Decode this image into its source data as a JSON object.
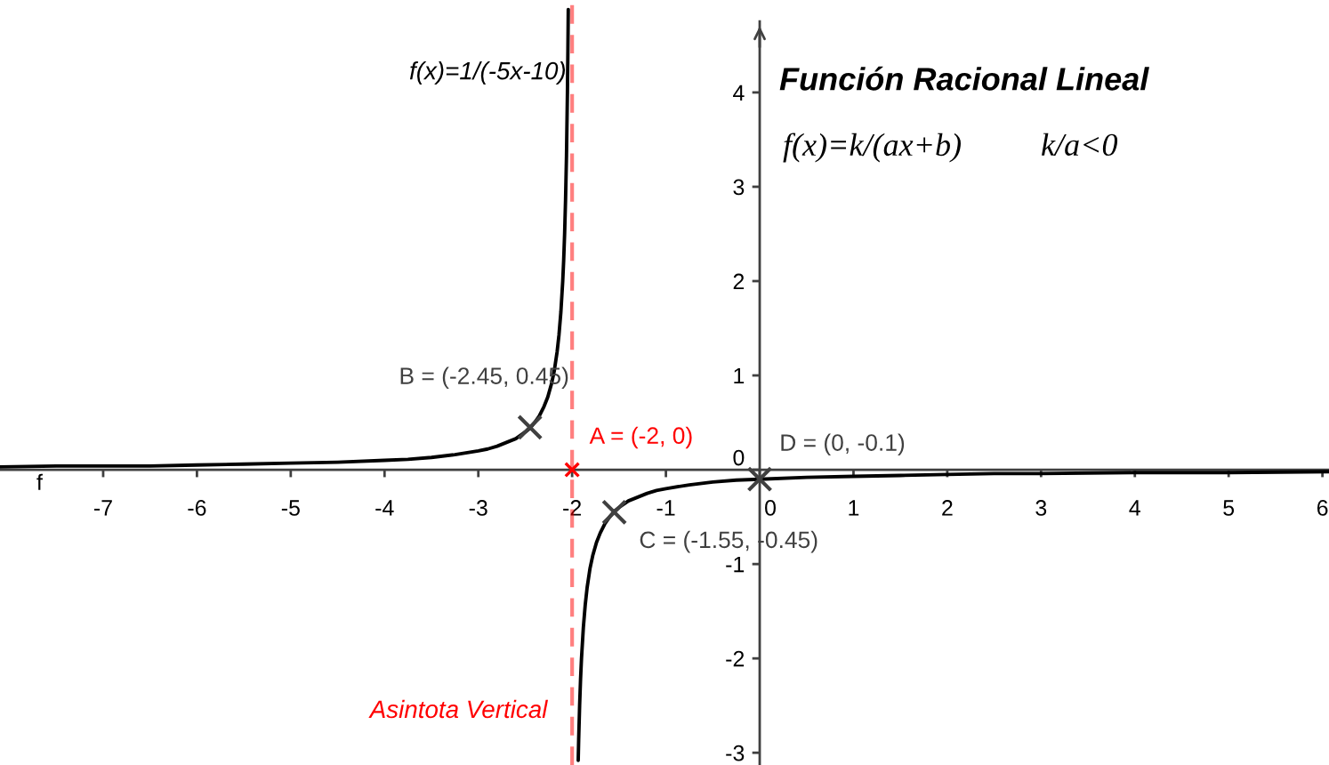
{
  "chart_data": {
    "type": "line",
    "title": "Función Racional Lineal",
    "annotations": [
      "f(x)=1/(-5x-10)",
      "f(x)=k/(ax+b)",
      "k/a<0"
    ],
    "xlim": [
      -8.1,
      6.07
    ],
    "ylim": [
      -3.13,
      4.98
    ],
    "xticks": [
      -7,
      -6,
      -5,
      -4,
      -3,
      -2,
      -1,
      0,
      1,
      2,
      3,
      4,
      5,
      6
    ],
    "yticks": [
      -3,
      -2,
      -1,
      0,
      1,
      2,
      3,
      4
    ],
    "ref_lines": [
      {
        "axis": "x",
        "value": -2,
        "label": "Asintota Vertical",
        "color": "#ff0000",
        "line_style": "dashed"
      }
    ],
    "series": [
      {
        "name": "f",
        "color": "#000000",
        "marker": "none",
        "x": [
          -8.1,
          -7.5,
          -7,
          -6.5,
          -6,
          -5.5,
          -5,
          -4.5,
          -4,
          -3.75,
          -3.5,
          -3.25,
          -3,
          -2.9,
          -2.8,
          -2.7,
          -2.6,
          -2.5,
          -2.45,
          -2.4,
          -2.35,
          -2.3,
          -2.26,
          -2.22,
          -2.19,
          -2.16,
          -2.14,
          -2.12,
          -2.1,
          -2.09,
          -2.08,
          -2.07,
          -2.06,
          -2.05,
          -2.045,
          -2.041,
          -2,
          -1.935,
          -1.93,
          -1.92,
          -1.91,
          -1.9,
          -1.88,
          -1.86,
          -1.84,
          -1.81,
          -1.78,
          -1.74,
          -1.7,
          -1.65,
          -1.6,
          -1.55,
          -1.5,
          -1.4,
          -1.3,
          -1.2,
          -1.1,
          -1,
          -0.75,
          -0.5,
          -0.25,
          0,
          0.5,
          1,
          1.5,
          2,
          2.5,
          3,
          4,
          5,
          6.07
        ],
        "values": [
          0.03,
          0.04,
          0.04,
          0.04,
          0.05,
          0.06,
          0.07,
          0.08,
          0.1,
          0.11,
          0.13,
          0.16,
          0.2,
          0.22,
          0.25,
          0.29,
          0.33,
          0.4,
          0.44,
          0.5,
          0.57,
          0.67,
          0.77,
          0.91,
          1.05,
          1.25,
          1.43,
          1.67,
          2,
          2.22,
          2.5,
          2.86,
          3.33,
          4,
          4.44,
          4.88,
          null,
          -3.08,
          -2.86,
          -2.5,
          -2.22,
          -2,
          -1.67,
          -1.43,
          -1.25,
          -1.05,
          -0.91,
          -0.77,
          -0.67,
          -0.57,
          -0.5,
          -0.44,
          -0.4,
          -0.33,
          -0.29,
          -0.25,
          -0.22,
          -0.2,
          -0.16,
          -0.13,
          -0.11,
          -0.1,
          -0.08,
          -0.07,
          -0.06,
          -0.05,
          -0.04,
          -0.04,
          -0.03,
          -0.03,
          -0.02
        ]
      },
      {
        "type": "scatter",
        "color": "#404040",
        "marker": "cross",
        "x": [
          -2.45,
          -1.55,
          0
        ],
        "values": [
          0.45,
          -0.45,
          -0.1
        ],
        "value_labels": [
          "B = (-2.45, 0.45)",
          "C = (-1.55, -0.45)",
          "D = (0, -0.1)"
        ]
      },
      {
        "type": "scatter",
        "color": "#ff0000",
        "marker": "cross",
        "x": [
          -2
        ],
        "values": [
          0
        ],
        "value_labels": [
          "A = (-2, 0)"
        ]
      }
    ]
  }
}
